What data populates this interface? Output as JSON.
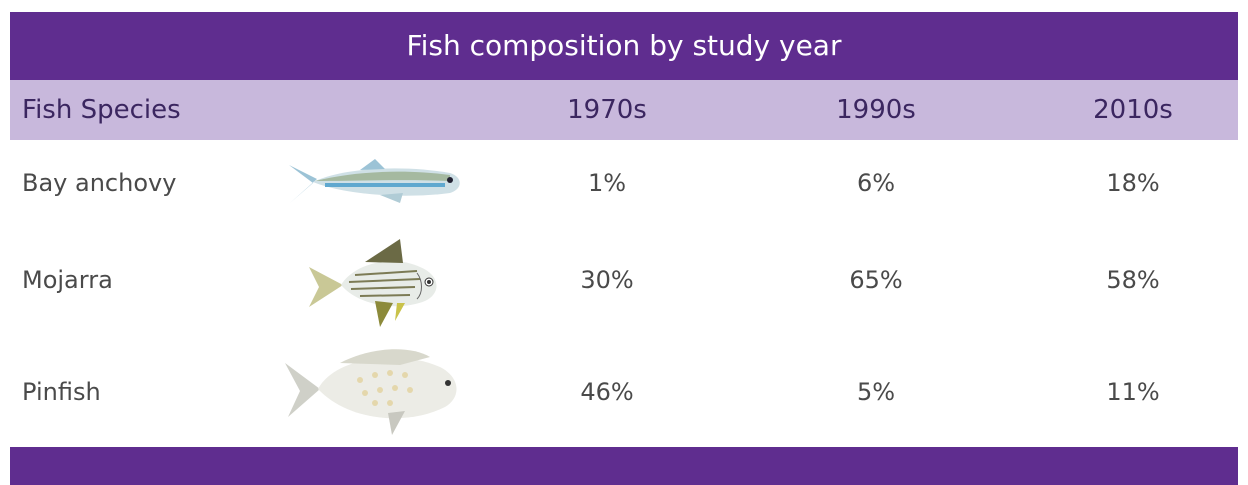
{
  "title": "Fish composition by study year",
  "table": {
    "header": [
      "Fish Species",
      "1970s",
      "1990s",
      "2010s"
    ],
    "rows": [
      [
        "Bay anchovy",
        "1%",
        "6%",
        "18%"
      ],
      [
        "Mojarra",
        "30%",
        "65%",
        "58%"
      ],
      [
        "Pinfish",
        "46%",
        "5%",
        "11%"
      ]
    ]
  }
}
